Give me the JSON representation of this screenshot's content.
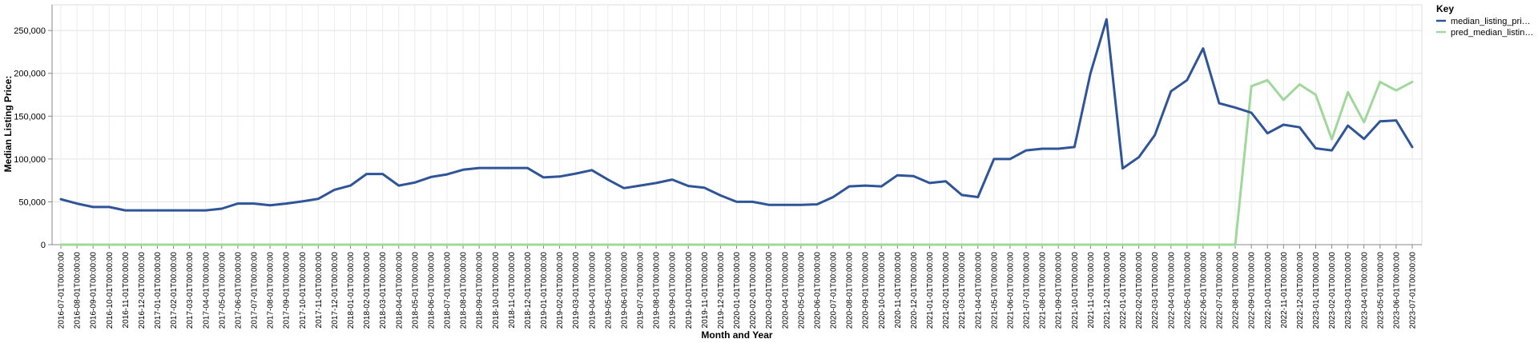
{
  "chart_data": {
    "type": "line",
    "xlabel": "Month and Year",
    "ylabel": "Median Listing Price:",
    "ylim": [
      0,
      280000
    ],
    "yticks": [
      0,
      50000,
      100000,
      150000,
      200000,
      250000
    ],
    "ytick_labels": [
      "0",
      "50,000",
      "100,000",
      "150,000",
      "200,000",
      "250,000"
    ],
    "grid": true,
    "legend": {
      "title": "Key",
      "position": "top-right",
      "entries": [
        "median_listing_pri…",
        "pred_median_listin…"
      ]
    },
    "x": [
      "2016-07-01T00:00:00",
      "2016-08-01T00:00:00",
      "2016-09-01T00:00:00",
      "2016-10-01T00:00:00",
      "2016-11-01T00:00:00",
      "2016-12-01T00:00:00",
      "2017-01-01T00:00:00",
      "2017-02-01T00:00:00",
      "2017-03-01T00:00:00",
      "2017-04-01T00:00:00",
      "2017-05-01T00:00:00",
      "2017-06-01T00:00:00",
      "2017-07-01T00:00:00",
      "2017-08-01T00:00:00",
      "2017-09-01T00:00:00",
      "2017-10-01T00:00:00",
      "2017-11-01T00:00:00",
      "2017-12-01T00:00:00",
      "2018-01-01T00:00:00",
      "2018-02-01T00:00:00",
      "2018-03-01T00:00:00",
      "2018-04-01T00:00:00",
      "2018-05-01T00:00:00",
      "2018-06-01T00:00:00",
      "2018-07-01T00:00:00",
      "2018-08-01T00:00:00",
      "2018-09-01T00:00:00",
      "2018-10-01T00:00:00",
      "2018-11-01T00:00:00",
      "2018-12-01T00:00:00",
      "2019-01-01T00:00:00",
      "2019-02-01T00:00:00",
      "2019-03-01T00:00:00",
      "2019-04-01T00:00:00",
      "2019-05-01T00:00:00",
      "2019-06-01T00:00:00",
      "2019-07-01T00:00:00",
      "2019-08-01T00:00:00",
      "2019-09-01T00:00:00",
      "2019-10-01T00:00:00",
      "2019-11-01T00:00:00",
      "2019-12-01T00:00:00",
      "2020-01-01T00:00:00",
      "2020-02-01T00:00:00",
      "2020-03-01T00:00:00",
      "2020-04-01T00:00:00",
      "2020-05-01T00:00:00",
      "2020-06-01T00:00:00",
      "2020-07-01T00:00:00",
      "2020-08-01T00:00:00",
      "2020-09-01T00:00:00",
      "2020-10-01T00:00:00",
      "2020-11-01T00:00:00",
      "2020-12-01T00:00:00",
      "2021-01-01T00:00:00",
      "2021-02-01T00:00:00",
      "2021-03-01T00:00:00",
      "2021-04-01T00:00:00",
      "2021-05-01T00:00:00",
      "2021-06-01T00:00:00",
      "2021-07-01T00:00:00",
      "2021-08-01T00:00:00",
      "2021-09-01T00:00:00",
      "2021-10-01T00:00:00",
      "2021-11-01T00:00:00",
      "2021-12-01T00:00:00",
      "2022-01-01T00:00:00",
      "2022-02-01T00:00:00",
      "2022-03-01T00:00:00",
      "2022-04-01T00:00:00",
      "2022-05-01T00:00:00",
      "2022-06-01T00:00:00",
      "2022-07-01T00:00:00",
      "2022-08-01T00:00:00",
      "2022-09-01T00:00:00",
      "2022-10-01T00:00:00",
      "2022-11-01T00:00:00",
      "2022-12-01T00:00:00",
      "2023-01-01T00:00:00",
      "2023-02-01T00:00:00",
      "2023-03-01T00:00:00",
      "2023-04-01T00:00:00",
      "2023-05-01T00:00:00",
      "2023-06-01T00:00:00",
      "2023-07-01T00:00:00"
    ],
    "series": [
      {
        "name": "median_listing_pri…",
        "color": "#2f5597",
        "values": [
          53000,
          48000,
          44000,
          44000,
          40000,
          40000,
          40000,
          40000,
          40000,
          40000,
          42000,
          48000,
          48000,
          46000,
          48000,
          50500,
          53500,
          64000,
          69000,
          82500,
          82500,
          69000,
          72500,
          79000,
          82000,
          87500,
          89500,
          89500,
          89500,
          89500,
          78500,
          79500,
          83000,
          87000,
          76000,
          66000,
          69000,
          72000,
          76000,
          68500,
          66500,
          57500,
          50000,
          50000,
          46500,
          46500,
          46500,
          47000,
          55500,
          68000,
          69000,
          68000,
          81000,
          80000,
          72000,
          74000,
          58000,
          55500,
          100000,
          100000,
          110000,
          112000,
          112000,
          114000,
          200000,
          263000,
          89000,
          102000,
          128000,
          179000,
          192000,
          229000,
          165000,
          160000,
          154000,
          130000,
          140000,
          137000,
          112500,
          110000,
          139000,
          123500,
          144000,
          145000,
          114000
        ]
      },
      {
        "name": "pred_median_listin…",
        "color": "#9fd89a",
        "values": [
          0,
          0,
          0,
          0,
          0,
          0,
          0,
          0,
          0,
          0,
          0,
          0,
          0,
          0,
          0,
          0,
          0,
          0,
          0,
          0,
          0,
          0,
          0,
          0,
          0,
          0,
          0,
          0,
          0,
          0,
          0,
          0,
          0,
          0,
          0,
          0,
          0,
          0,
          0,
          0,
          0,
          0,
          0,
          0,
          0,
          0,
          0,
          0,
          0,
          0,
          0,
          0,
          0,
          0,
          0,
          0,
          0,
          0,
          0,
          0,
          0,
          0,
          0,
          0,
          0,
          0,
          0,
          0,
          0,
          0,
          0,
          0,
          0,
          0,
          185000,
          192000,
          169000,
          187000,
          175000,
          123000,
          178000,
          143000,
          190000,
          180000,
          190000
        ]
      }
    ]
  }
}
